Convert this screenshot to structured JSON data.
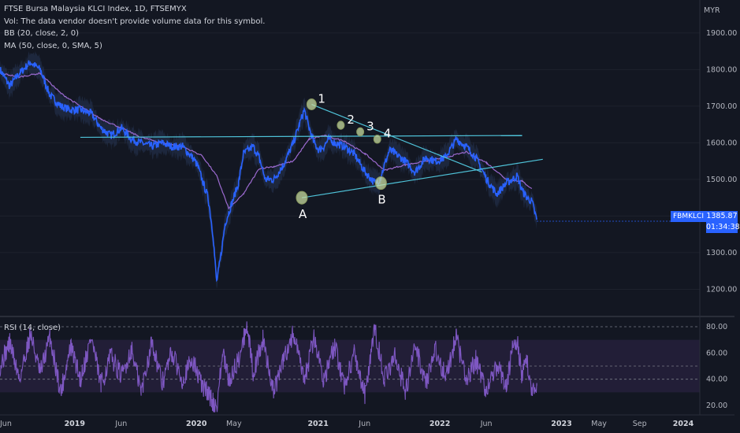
{
  "legend": {
    "title": "FTSE Bursa Malaysia KLCI Index, 1D, FTSEMYX",
    "vol": "Vol: The data vendor doesn't provide volume data for this symbol.",
    "bb": "BB (20, close, 2, 0)",
    "ma": "MA (50, close, 0, SMA, 5)",
    "rsi": "RSI (14, close)"
  },
  "currency": "MYR",
  "price_tag": {
    "symbol": "FBMKLCI",
    "price": "1385.87",
    "countdown": "01:34:38"
  },
  "colors": {
    "background": "#131722",
    "price_line": "#2962ff",
    "ma_line": "#9c6ad0",
    "bb_fill": "#2a3b5f",
    "trendline": "#4fc3d9",
    "rsi_line": "#7e57c2",
    "rsi_band": "#2a2240",
    "marker": "#c8dca0"
  },
  "chart_data": [
    {
      "type": "line",
      "title": "FTSE Bursa Malaysia KLCI Index, 1D, FTSEMYX",
      "x_tick_labels": [
        "Jun",
        "2019",
        "Jun",
        "2020",
        "May",
        "2021",
        "Jun",
        "2022",
        "Jun",
        "2023",
        "May",
        "Sep",
        "2024"
      ],
      "y_ticks": [
        1200,
        1300,
        1400,
        1500,
        1600,
        1700,
        1800,
        1900
      ],
      "y_tick_labels": [
        "1200.00",
        "1300.00",
        "1400.00",
        "1500.00",
        "1600.00",
        "1700.00",
        "1800.00",
        "1900.00"
      ],
      "ylim": [
        1130,
        1990
      ],
      "xlim": [
        2018.42,
        2024.17
      ],
      "last_value": 1385.87,
      "series": [
        {
          "x": [
            2018.42,
            2018.5,
            2018.58,
            2018.67,
            2018.75,
            2018.83,
            2018.92,
            2019.0,
            2019.08,
            2019.17,
            2019.25,
            2019.33,
            2019.42,
            2019.5,
            2019.58,
            2019.67,
            2019.75,
            2019.83,
            2019.92,
            2020.0,
            2020.04,
            2020.08,
            2020.13,
            2020.17,
            2020.2,
            2020.23,
            2020.27,
            2020.3,
            2020.33,
            2020.38,
            2020.42,
            2020.5,
            2020.55,
            2020.6,
            2020.67,
            2020.75,
            2020.83,
            2020.88,
            2020.92,
            2020.96,
            2021.0,
            2021.04,
            2021.08,
            2021.12,
            2021.17,
            2021.21,
            2021.25,
            2021.33,
            2021.42,
            2021.5,
            2021.54,
            2021.58,
            2021.62,
            2021.67,
            2021.75,
            2021.83,
            2021.92,
            2022.0,
            2022.08,
            2022.17,
            2022.25,
            2022.33,
            2022.42,
            2022.5,
            2022.58,
            2022.63,
            2022.67,
            2022.71,
            2022.75,
            2022.79,
            2022.83
          ],
          "values": [
            1800,
            1755,
            1790,
            1820,
            1800,
            1730,
            1700,
            1690,
            1690,
            1680,
            1640,
            1620,
            1640,
            1610,
            1600,
            1590,
            1600,
            1590,
            1590,
            1560,
            1540,
            1500,
            1450,
            1350,
            1220,
            1280,
            1380,
            1410,
            1440,
            1490,
            1570,
            1590,
            1560,
            1500,
            1500,
            1540,
            1600,
            1650,
            1690,
            1640,
            1600,
            1580,
            1590,
            1610,
            1600,
            1595,
            1590,
            1570,
            1520,
            1490,
            1500,
            1540,
            1580,
            1570,
            1550,
            1520,
            1560,
            1550,
            1560,
            1610,
            1590,
            1560,
            1500,
            1460,
            1490,
            1500,
            1510,
            1470,
            1450,
            1440,
            1390
          ]
        },
        {
          "name": "MA (50, close, 0, SMA, 5)",
          "x": [
            2018.42,
            2018.58,
            2018.75,
            2018.92,
            2019.08,
            2019.25,
            2019.42,
            2019.58,
            2019.75,
            2019.92,
            2020.08,
            2020.2,
            2020.3,
            2020.42,
            2020.55,
            2020.67,
            2020.83,
            2020.96,
            2021.08,
            2021.25,
            2021.42,
            2021.58,
            2021.75,
            2021.92,
            2022.08,
            2022.25,
            2022.42,
            2022.58,
            2022.71,
            2022.79
          ],
          "values": [
            1790,
            1780,
            1790,
            1735,
            1700,
            1665,
            1640,
            1615,
            1600,
            1590,
            1565,
            1510,
            1420,
            1460,
            1530,
            1535,
            1550,
            1610,
            1620,
            1605,
            1570,
            1525,
            1540,
            1550,
            1560,
            1575,
            1545,
            1500,
            1495,
            1475
          ]
        }
      ],
      "annotations": {
        "points": [
          {
            "label": "A",
            "x": 2020.9,
            "y": 1450
          },
          {
            "label": "B",
            "x": 2021.55,
            "y": 1490
          },
          {
            "label": "1",
            "x": 2020.98,
            "y": 1705
          },
          {
            "label": "2",
            "x": 2021.22,
            "y": 1648
          },
          {
            "label": "3",
            "x": 2021.38,
            "y": 1630
          },
          {
            "label": "4",
            "x": 2021.52,
            "y": 1610
          }
        ],
        "trendlines": [
          {
            "x": [
              2019.08,
              2022.71
            ],
            "y": [
              1615,
              1620
            ]
          },
          {
            "x": [
              2020.9,
              2022.88
            ],
            "y": [
              1450,
              1555
            ]
          },
          {
            "x": [
              2020.98,
              2022.38
            ],
            "y": [
              1705,
              1520
            ]
          }
        ]
      }
    },
    {
      "type": "line",
      "title": "RSI (14, close)",
      "y_ticks": [
        20,
        40,
        60,
        80
      ],
      "y_tick_labels": [
        "20.00",
        "40.00",
        "60.00",
        "80.00"
      ],
      "ylim": [
        14,
        86
      ],
      "band": [
        30,
        70
      ],
      "levels": [
        80,
        50,
        40
      ],
      "xlim": [
        2018.42,
        2024.17
      ],
      "series": [
        {
          "x": [
            2018.42,
            2018.5,
            2018.58,
            2018.67,
            2018.75,
            2018.83,
            2018.92,
            2019.0,
            2019.08,
            2019.17,
            2019.25,
            2019.33,
            2019.42,
            2019.5,
            2019.58,
            2019.67,
            2019.75,
            2019.83,
            2019.92,
            2020.0,
            2020.08,
            2020.13,
            2020.17,
            2020.2,
            2020.25,
            2020.3,
            2020.38,
            2020.45,
            2020.5,
            2020.58,
            2020.67,
            2020.75,
            2020.83,
            2020.92,
            2021.0,
            2021.08,
            2021.17,
            2021.25,
            2021.33,
            2021.42,
            2021.5,
            2021.58,
            2021.67,
            2021.75,
            2021.83,
            2021.92,
            2022.0,
            2022.08,
            2022.17,
            2022.25,
            2022.33,
            2022.42,
            2022.5,
            2022.58,
            2022.63,
            2022.67,
            2022.71,
            2022.75,
            2022.79,
            2022.83
          ],
          "values": [
            50,
            68,
            40,
            75,
            44,
            72,
            30,
            65,
            40,
            72,
            35,
            58,
            42,
            63,
            30,
            70,
            36,
            60,
            40,
            55,
            35,
            30,
            22,
            18,
            60,
            38,
            55,
            82,
            45,
            70,
            30,
            55,
            75,
            38,
            72,
            40,
            65,
            35,
            60,
            28,
            78,
            40,
            58,
            30,
            65,
            38,
            62,
            42,
            72,
            38,
            55,
            30,
            50,
            35,
            62,
            68,
            42,
            55,
            30,
            35
          ]
        }
      ]
    }
  ]
}
